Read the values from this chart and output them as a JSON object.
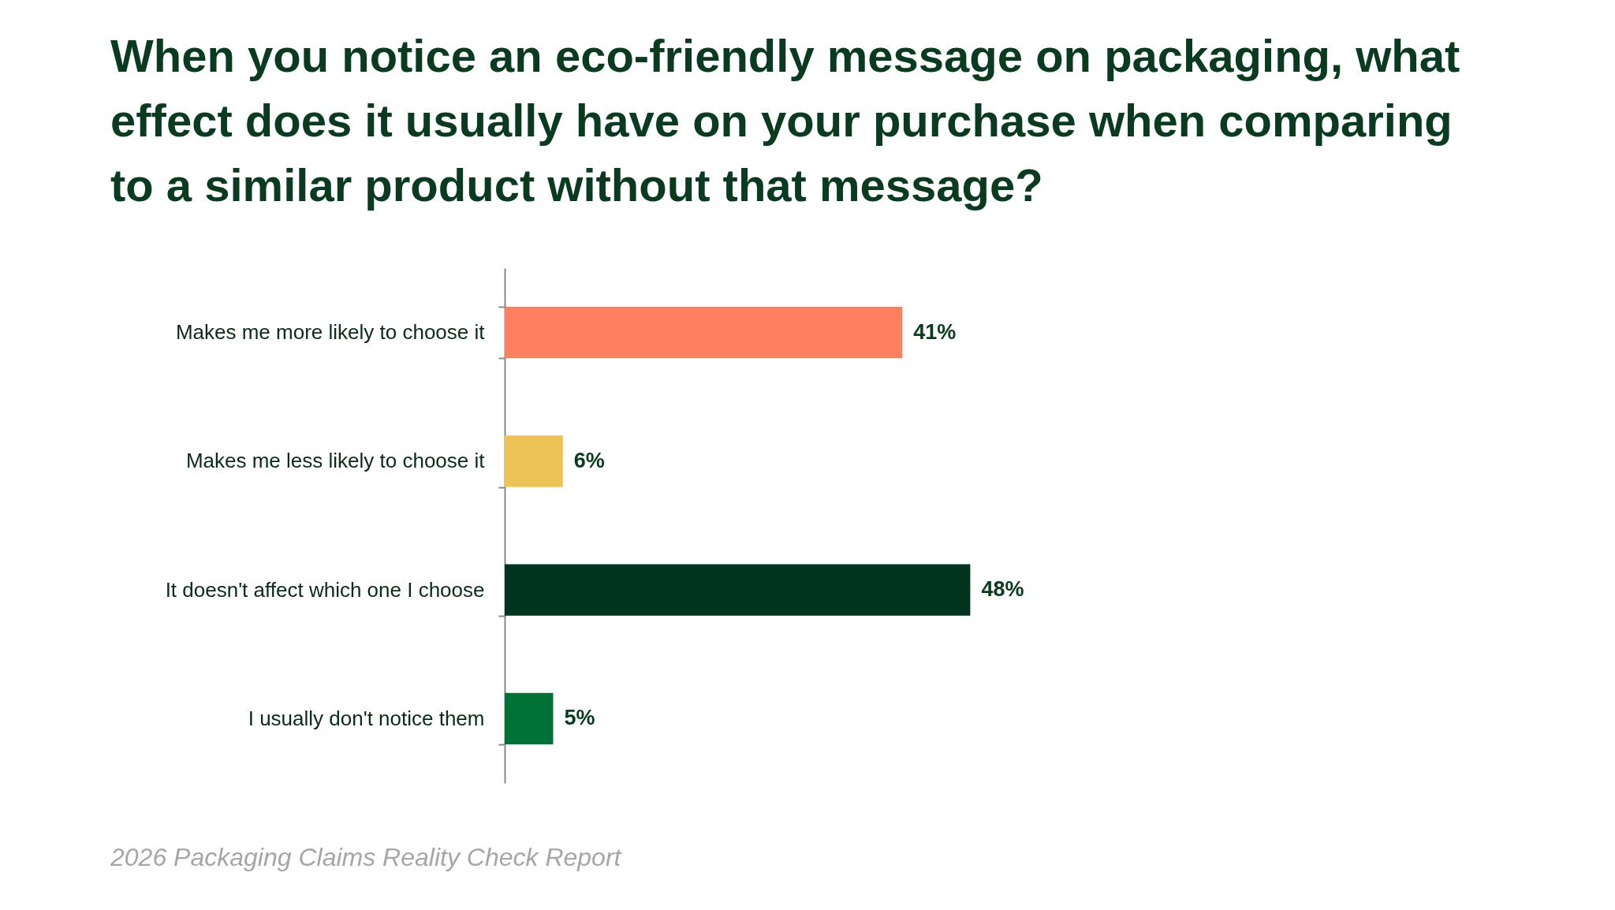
{
  "chart_data": {
    "type": "bar",
    "orientation": "horizontal",
    "title": "When you notice an eco-friendly message on packaging, what effect does it usually have on your purchase when comparing to a similar product without that message?",
    "categories": [
      "Makes me more likely to choose it",
      "Makes me less likely to choose it",
      "It doesn't affect which one I choose",
      "I usually don't notice them"
    ],
    "values": [
      41,
      6,
      48,
      5
    ],
    "colors": [
      "#ff7f61",
      "#eec355",
      "#003320",
      "#007236"
    ],
    "value_labels": [
      "41%",
      "6%",
      "48%",
      "5%"
    ],
    "tick_labels": "y",
    "annotations": [
      "2026 Packaging Claims Reality Check Report"
    ]
  }
}
